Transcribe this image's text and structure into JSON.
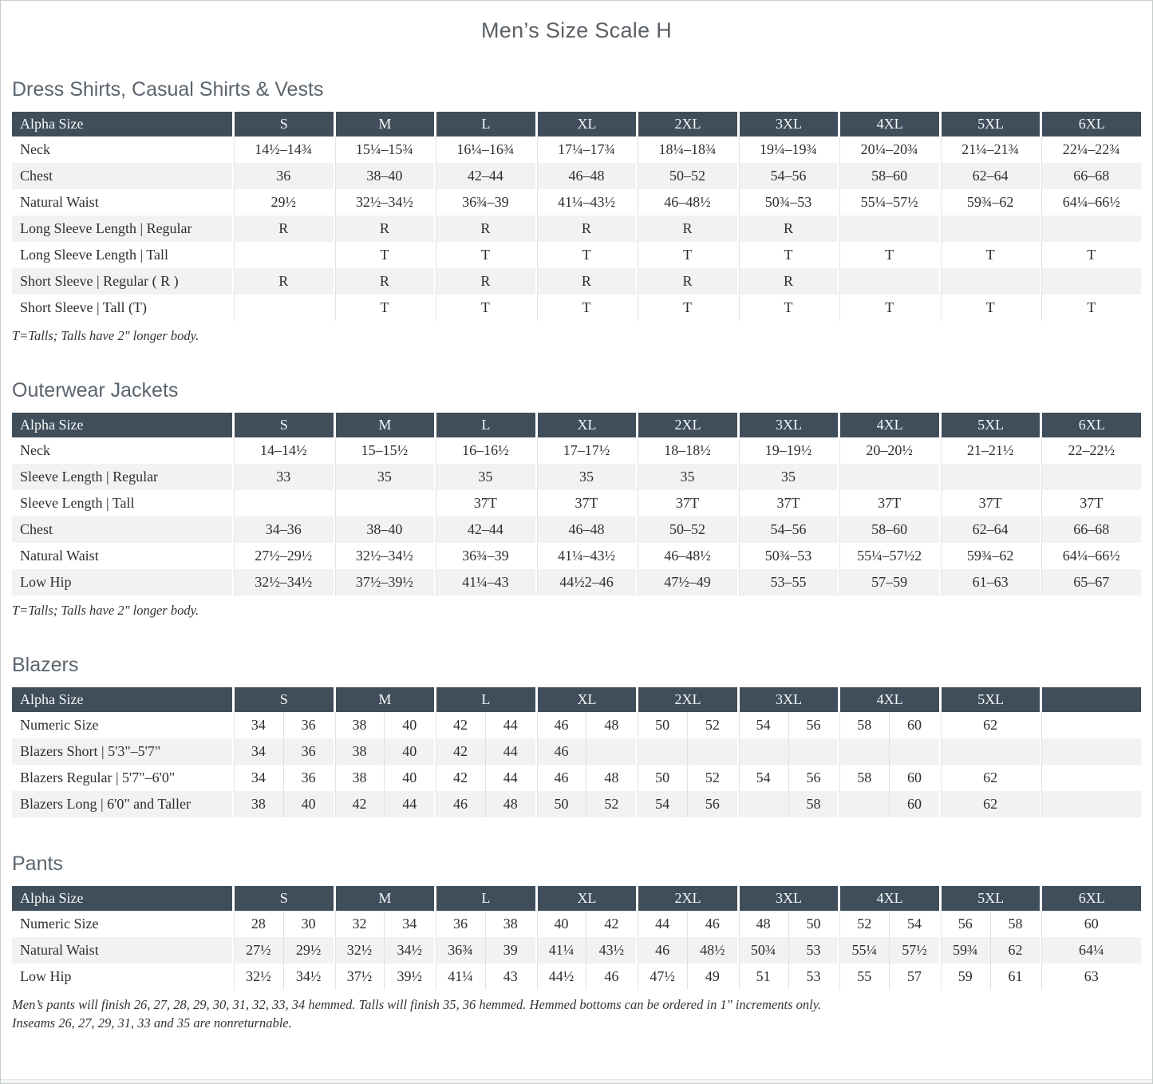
{
  "page": {
    "title": "Men’s Size Scale H"
  },
  "colors": {
    "header_bg": "#3f4e5a",
    "header_text": "#f4f6f7",
    "row_stripe": "#f2f2f0",
    "body_text": "#2e2e2e",
    "section_heading_text": "#5b646d",
    "title_text": "#5a6066"
  },
  "tables": [
    {
      "id": "dress-shirts",
      "section_title": "Dress Shirts, Casual Shirts & Vests",
      "header": [
        "Alpha Size",
        "S",
        "M",
        "L",
        "XL",
        "2XL",
        "3XL",
        "4XL",
        "5XL",
        "6XL"
      ],
      "rows": [
        {
          "label": "Neck",
          "cells": [
            "14½–14¾",
            "15¼–15¾",
            "16¼–16¾",
            "17¼–17¾",
            "18¼–18¾",
            "19¼–19¾",
            "20¼–20¾",
            "21¼–21¾",
            "22¼–22¾"
          ]
        },
        {
          "label": "Chest",
          "cells": [
            "36",
            "38–40",
            "42–44",
            "46–48",
            "50–52",
            "54–56",
            "58–60",
            "62–64",
            "66–68"
          ]
        },
        {
          "label": "Natural Waist",
          "cells": [
            "29½",
            "32½–34½",
            "36¾–39",
            "41¼–43½",
            "46–48½",
            "50¾–53",
            "55¼–57½",
            "59¾–62",
            "64¼–66½"
          ]
        },
        {
          "label": "Long Sleeve Length  |  Regular",
          "cells": [
            "R",
            "R",
            "R",
            "R",
            "R",
            "R",
            "",
            "",
            ""
          ]
        },
        {
          "label": "Long Sleeve Length  |  Tall",
          "cells": [
            "",
            "T",
            "T",
            "T",
            "T",
            "T",
            "T",
            "T",
            "T"
          ]
        },
        {
          "label": "Short Sleeve  |  Regular ( R )",
          "cells": [
            "R",
            "R",
            "R",
            "R",
            "R",
            "R",
            "",
            "",
            ""
          ]
        },
        {
          "label": "Short Sleeve  |  Tall (T)",
          "cells": [
            "",
            "T",
            "T",
            "T",
            "T",
            "T",
            "T",
            "T",
            "T"
          ]
        }
      ],
      "footnotes": [
        "T=Talls; Talls have 2\" longer body."
      ]
    },
    {
      "id": "outerwear-jackets",
      "section_title": "Outerwear Jackets",
      "header": [
        "Alpha Size",
        "S",
        "M",
        "L",
        "XL",
        "2XL",
        "3XL",
        "4XL",
        "5XL",
        "6XL"
      ],
      "rows": [
        {
          "label": "Neck",
          "cells": [
            "14–14½",
            "15–15½",
            "16–16½",
            "17–17½",
            "18–18½",
            "19–19½",
            "20–20½",
            "21–21½",
            "22–22½"
          ]
        },
        {
          "label": "Sleeve Length  |  Regular",
          "cells": [
            "33",
            "35",
            "35",
            "35",
            "35",
            "35",
            "",
            "",
            ""
          ]
        },
        {
          "label": "Sleeve Length  |  Tall",
          "cells": [
            "",
            "",
            "37T",
            "37T",
            "37T",
            "37T",
            "37T",
            "37T",
            "37T"
          ]
        },
        {
          "label": "Chest",
          "cells": [
            "34–36",
            "38–40",
            "42–44",
            "46–48",
            "50–52",
            "54–56",
            "58–60",
            "62–64",
            "66–68"
          ]
        },
        {
          "label": "Natural Waist",
          "cells": [
            "27½–29½",
            "32½–34½",
            "36¾–39",
            "41¼–43½",
            "46–48½",
            "50¾–53",
            "55¼–57½2",
            "59¾–62",
            "64¼–66½"
          ]
        },
        {
          "label": "Low Hip",
          "cells": [
            "32½–34½",
            "37½–39½",
            "41¼–43",
            "44½2–46",
            "47½–49",
            "53–55",
            "57–59",
            "61–63",
            "65–67"
          ]
        }
      ],
      "footnotes": [
        "T=Talls; Talls have 2\" longer body."
      ]
    },
    {
      "id": "blazers",
      "section_title": "Blazers",
      "header": [
        "Alpha Size",
        "S",
        "M",
        "L",
        "XL",
        "2XL",
        "3XL",
        "4XL",
        "5XL",
        ""
      ],
      "rows": [
        {
          "label": "Numeric Size",
          "cells": [
            [
              "34",
              "36"
            ],
            [
              "38",
              "40"
            ],
            [
              "42",
              "44"
            ],
            [
              "46",
              "48"
            ],
            [
              "50",
              "52"
            ],
            [
              "54",
              "56"
            ],
            [
              "58",
              "60"
            ],
            [
              "62"
            ],
            [
              ""
            ]
          ]
        },
        {
          "label": "Blazers Short  |  5'3\"–5'7\"",
          "cells": [
            [
              "34",
              "36"
            ],
            [
              "38",
              "40"
            ],
            [
              "42",
              "44"
            ],
            [
              "46",
              ""
            ],
            [
              "",
              ""
            ],
            [
              "",
              ""
            ],
            [
              "",
              ""
            ],
            [
              ""
            ],
            [
              ""
            ]
          ]
        },
        {
          "label": "Blazers Regular  |  5'7\"–6'0\"",
          "cells": [
            [
              "34",
              "36"
            ],
            [
              "38",
              "40"
            ],
            [
              "42",
              "44"
            ],
            [
              "46",
              "48"
            ],
            [
              "50",
              "52"
            ],
            [
              "54",
              "56"
            ],
            [
              "58",
              "60"
            ],
            [
              "62"
            ],
            [
              ""
            ]
          ]
        },
        {
          "label": "Blazers Long  |  6'0\" and Taller",
          "cells": [
            [
              "38",
              "40"
            ],
            [
              "42",
              "44"
            ],
            [
              "46",
              "48"
            ],
            [
              "50",
              "52"
            ],
            [
              "54",
              "56"
            ],
            [
              "",
              "58"
            ],
            [
              "",
              "60"
            ],
            [
              "62"
            ],
            [
              ""
            ]
          ]
        }
      ],
      "footnotes": []
    },
    {
      "id": "pants",
      "section_title": "Pants",
      "header": [
        "Alpha Size",
        "S",
        "M",
        "L",
        "XL",
        "2XL",
        "3XL",
        "4XL",
        "5XL",
        "6XL"
      ],
      "rows": [
        {
          "label": "Numeric Size",
          "cells": [
            [
              "28",
              "30"
            ],
            [
              "32",
              "34"
            ],
            [
              "36",
              "38"
            ],
            [
              "40",
              "42"
            ],
            [
              "44",
              "46"
            ],
            [
              "48",
              "50"
            ],
            [
              "52",
              "54"
            ],
            [
              "56",
              "58"
            ],
            [
              "60"
            ]
          ]
        },
        {
          "label": "Natural Waist",
          "cells": [
            [
              "27½",
              "29½"
            ],
            [
              "32½",
              "34½"
            ],
            [
              "36¾",
              "39"
            ],
            [
              "41¼",
              "43½"
            ],
            [
              "46",
              "48½"
            ],
            [
              "50¾",
              "53"
            ],
            [
              "55¼",
              "57½"
            ],
            [
              "59¾",
              "62"
            ],
            [
              "64¼"
            ]
          ]
        },
        {
          "label": "Low Hip",
          "cells": [
            [
              "32½",
              "34½"
            ],
            [
              "37½",
              "39½"
            ],
            [
              "41¼",
              "43"
            ],
            [
              "44½",
              "46"
            ],
            [
              "47½",
              "49"
            ],
            [
              "51",
              "53"
            ],
            [
              "55",
              "57"
            ],
            [
              "59",
              "61"
            ],
            [
              "63"
            ]
          ]
        }
      ],
      "footnotes": [
        "Men’s pants will finish 26, 27, 28, 29, 30, 31, 32, 33, 34 hemmed. Talls will finish 35, 36 hemmed. Hemmed bottoms can be ordered in 1\" increments only.",
        "Inseams 26, 27, 29, 31, 33 and 35 are nonreturnable."
      ]
    }
  ]
}
